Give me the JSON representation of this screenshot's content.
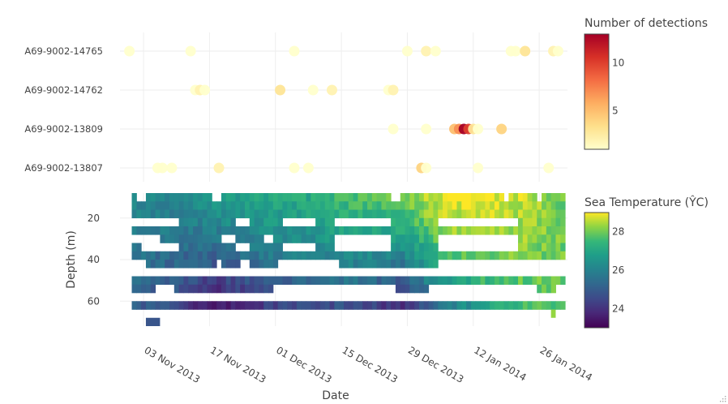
{
  "chart_data": [
    {
      "type": "scatter",
      "panel": "detections",
      "x_axis": {
        "type": "date",
        "range": [
          "2013-10-29",
          "2014-02-01"
        ],
        "ticks": [
          "2013-11-03",
          "2013-11-17",
          "2013-12-01",
          "2013-12-15",
          "2013-12-29",
          "2014-01-12",
          "2014-01-26"
        ],
        "tick_labels": [
          "03 Nov 2013",
          "17 Nov 2013",
          "01 Dec 2013",
          "15 Dec 2013",
          "29 Dec 2013",
          "12 Jan 2014",
          "26 Jan 2014"
        ],
        "label": "Date"
      },
      "categories": [
        "A69-9002-14765",
        "A69-9002-14762",
        "A69-9002-13809",
        "A69-9002-13807"
      ],
      "colorbar": {
        "title": "Number of detections",
        "range": [
          1,
          13
        ],
        "ticks": [
          5,
          10
        ],
        "colorscale": "YlOrRd"
      },
      "points": [
        {
          "tag": "A69-9002-14765",
          "date": "2013-10-31",
          "n": 1
        },
        {
          "tag": "A69-9002-14765",
          "date": "2013-11-13",
          "n": 1
        },
        {
          "tag": "A69-9002-14765",
          "date": "2013-12-05",
          "n": 1
        },
        {
          "tag": "A69-9002-14765",
          "date": "2013-12-29",
          "n": 1
        },
        {
          "tag": "A69-9002-14765",
          "date": "2014-01-02",
          "n": 2
        },
        {
          "tag": "A69-9002-14765",
          "date": "2014-01-04",
          "n": 1
        },
        {
          "tag": "A69-9002-14765",
          "date": "2014-01-20",
          "n": 1
        },
        {
          "tag": "A69-9002-14765",
          "date": "2014-01-21",
          "n": 1
        },
        {
          "tag": "A69-9002-14765",
          "date": "2014-01-23",
          "n": 3
        },
        {
          "tag": "A69-9002-14765",
          "date": "2014-01-29",
          "n": 2
        },
        {
          "tag": "A69-9002-14765",
          "date": "2014-01-30",
          "n": 1
        },
        {
          "tag": "A69-9002-14762",
          "date": "2013-11-14",
          "n": 1
        },
        {
          "tag": "A69-9002-14762",
          "date": "2013-11-15",
          "n": 2
        },
        {
          "tag": "A69-9002-14762",
          "date": "2013-11-16",
          "n": 1
        },
        {
          "tag": "A69-9002-14762",
          "date": "2013-12-02",
          "n": 3
        },
        {
          "tag": "A69-9002-14762",
          "date": "2013-12-09",
          "n": 1
        },
        {
          "tag": "A69-9002-14762",
          "date": "2013-12-13",
          "n": 2
        },
        {
          "tag": "A69-9002-14762",
          "date": "2013-12-25",
          "n": 1
        },
        {
          "tag": "A69-9002-14762",
          "date": "2013-12-26",
          "n": 2
        },
        {
          "tag": "A69-9002-13809",
          "date": "2013-12-26",
          "n": 1
        },
        {
          "tag": "A69-9002-13809",
          "date": "2014-01-02",
          "n": 1
        },
        {
          "tag": "A69-9002-13809",
          "date": "2014-01-08",
          "n": 5
        },
        {
          "tag": "A69-9002-13809",
          "date": "2014-01-09",
          "n": 7
        },
        {
          "tag": "A69-9002-13809",
          "date": "2014-01-10",
          "n": 13
        },
        {
          "tag": "A69-9002-13809",
          "date": "2014-01-11",
          "n": 10
        },
        {
          "tag": "A69-9002-13809",
          "date": "2014-01-12",
          "n": 3
        },
        {
          "tag": "A69-9002-13809",
          "date": "2014-01-13",
          "n": 1
        },
        {
          "tag": "A69-9002-13809",
          "date": "2014-01-18",
          "n": 4
        },
        {
          "tag": "A69-9002-13807",
          "date": "2013-11-06",
          "n": 1
        },
        {
          "tag": "A69-9002-13807",
          "date": "2013-11-07",
          "n": 1
        },
        {
          "tag": "A69-9002-13807",
          "date": "2013-11-09",
          "n": 1
        },
        {
          "tag": "A69-9002-13807",
          "date": "2013-11-19",
          "n": 2
        },
        {
          "tag": "A69-9002-13807",
          "date": "2013-12-05",
          "n": 1
        },
        {
          "tag": "A69-9002-13807",
          "date": "2013-12-08",
          "n": 1
        },
        {
          "tag": "A69-9002-13807",
          "date": "2014-01-01",
          "n": 4
        },
        {
          "tag": "A69-9002-13807",
          "date": "2014-01-02",
          "n": 1
        },
        {
          "tag": "A69-9002-13807",
          "date": "2014-01-13",
          "n": 1
        },
        {
          "tag": "A69-9002-13807",
          "date": "2014-01-28",
          "n": 1
        }
      ]
    },
    {
      "type": "heatmap",
      "panel": "temperature",
      "x_axis": {
        "type": "date",
        "range": [
          "2013-10-29",
          "2014-02-01"
        ],
        "label": "Date"
      },
      "y_axis": {
        "label": "Depth (m)",
        "range": [
          8,
          72
        ],
        "reversed": true,
        "ticks": [
          20,
          40,
          60
        ]
      },
      "colorbar": {
        "title": "Sea Temperature (ŶC)",
        "range": [
          23,
          29
        ],
        "ticks": [
          24,
          26,
          28
        ],
        "colorscale": "Viridis"
      },
      "depth_bin_m": 4,
      "date_range": [
        "2013-11-01",
        "2014-01-31"
      ],
      "depths": [
        10,
        14,
        18,
        22,
        26,
        30,
        34,
        38,
        42,
        46,
        50,
        54,
        58,
        62
      ],
      "profile_anchors": [
        {
          "date": "2013-11-01",
          "surface": 26.2,
          "deep": 25.0
        },
        {
          "date": "2013-11-10",
          "surface": 26.0,
          "deep": 24.6
        },
        {
          "date": "2013-11-18",
          "surface": 26.6,
          "deep": 23.3
        },
        {
          "date": "2013-11-28",
          "surface": 26.9,
          "deep": 24.2
        },
        {
          "date": "2013-12-08",
          "surface": 27.1,
          "deep": 24.6
        },
        {
          "date": "2013-12-18",
          "surface": 27.6,
          "deep": 24.7
        },
        {
          "date": "2013-12-28",
          "surface": 27.9,
          "deep": 23.8
        },
        {
          "date": "2014-01-05",
          "surface": 28.8,
          "deep": 25.6
        },
        {
          "date": "2014-01-14",
          "surface": 29.0,
          "deep": 26.8
        },
        {
          "date": "2014-01-22",
          "surface": 28.6,
          "deep": 27.5
        },
        {
          "date": "2014-01-31",
          "surface": 28.0,
          "deep": 28.0
        }
      ],
      "missing": [
        {
          "from": "2013-11-02",
          "to": "2013-11-03",
          "depth_from": 10,
          "depth_to": 10
        },
        {
          "from": "2013-11-18",
          "to": "2013-11-19",
          "depth_from": 10,
          "depth_to": 10
        },
        {
          "from": "2013-12-26",
          "to": "2013-12-27",
          "depth_from": 10,
          "depth_to": 10
        },
        {
          "from": "2014-01-19",
          "to": "2014-01-19",
          "depth_from": 10,
          "depth_to": 10
        },
        {
          "from": "2014-01-26",
          "to": "2014-01-26",
          "depth_from": 10,
          "depth_to": 10
        },
        {
          "from": "2013-11-01",
          "to": "2013-11-10",
          "depth_from": 22,
          "depth_to": 22
        },
        {
          "from": "2013-11-23",
          "to": "2013-11-25",
          "depth_from": 22,
          "depth_to": 22
        },
        {
          "from": "2013-12-03",
          "to": "2013-12-09",
          "depth_from": 22,
          "depth_to": 22
        },
        {
          "from": "2013-12-14",
          "to": "2013-12-25",
          "depth_from": 22,
          "depth_to": 22
        },
        {
          "from": "2014-01-05",
          "to": "2014-01-21",
          "depth_from": 22,
          "depth_to": 22
        },
        {
          "from": "2013-11-01",
          "to": "2013-11-06",
          "depth_from": 30,
          "depth_to": 30
        },
        {
          "from": "2013-11-20",
          "to": "2013-11-22",
          "depth_from": 30,
          "depth_to": 30
        },
        {
          "from": "2013-11-29",
          "to": "2013-11-30",
          "depth_from": 30,
          "depth_to": 30
        },
        {
          "from": "2013-12-14",
          "to": "2013-12-25",
          "depth_from": 30,
          "depth_to": 30
        },
        {
          "from": "2014-01-05",
          "to": "2014-01-21",
          "depth_from": 30,
          "depth_to": 30
        },
        {
          "from": "2013-11-03",
          "to": "2013-11-10",
          "depth_from": 34,
          "depth_to": 34
        },
        {
          "from": "2013-11-23",
          "to": "2013-11-25",
          "depth_from": 34,
          "depth_to": 34
        },
        {
          "from": "2013-12-03",
          "to": "2013-12-09",
          "depth_from": 34,
          "depth_to": 34
        },
        {
          "from": "2013-12-14",
          "to": "2013-12-25",
          "depth_from": 34,
          "depth_to": 34
        },
        {
          "from": "2014-01-05",
          "to": "2014-01-21",
          "depth_from": 34,
          "depth_to": 34
        },
        {
          "from": "2013-11-01",
          "to": "2014-01-31",
          "depth_from": 46,
          "depth_to": 46
        },
        {
          "from": "2013-11-01",
          "to": "2013-11-03",
          "depth_from": 42,
          "depth_to": 42
        },
        {
          "from": "2013-11-19",
          "to": "2013-11-19",
          "depth_from": 42,
          "depth_to": 42
        },
        {
          "from": "2013-11-24",
          "to": "2013-11-25",
          "depth_from": 42,
          "depth_to": 42
        },
        {
          "from": "2013-12-02",
          "to": "2013-12-14",
          "depth_from": 42,
          "depth_to": 42
        },
        {
          "from": "2014-01-05",
          "to": "2014-01-31",
          "depth_from": 42,
          "depth_to": 42
        },
        {
          "from": "2013-11-06",
          "to": "2013-11-09",
          "depth_from": 54,
          "depth_to": 54
        },
        {
          "from": "2013-12-01",
          "to": "2013-12-26",
          "depth_from": 54,
          "depth_to": 54
        },
        {
          "from": "2014-01-03",
          "to": "2014-01-25",
          "depth_from": 54,
          "depth_to": 54
        },
        {
          "from": "2014-01-30",
          "to": "2014-01-31",
          "depth_from": 54,
          "depth_to": 54
        },
        {
          "from": "2013-11-01",
          "to": "2014-01-31",
          "depth_from": 58,
          "depth_to": 58
        }
      ],
      "extra_cells": [
        {
          "from": "2013-11-04",
          "to": "2013-11-06",
          "depth": 70,
          "value": 24.8
        },
        {
          "from": "2014-01-29",
          "to": "2014-01-29",
          "depth": 66,
          "value": 28.3
        }
      ]
    }
  ]
}
